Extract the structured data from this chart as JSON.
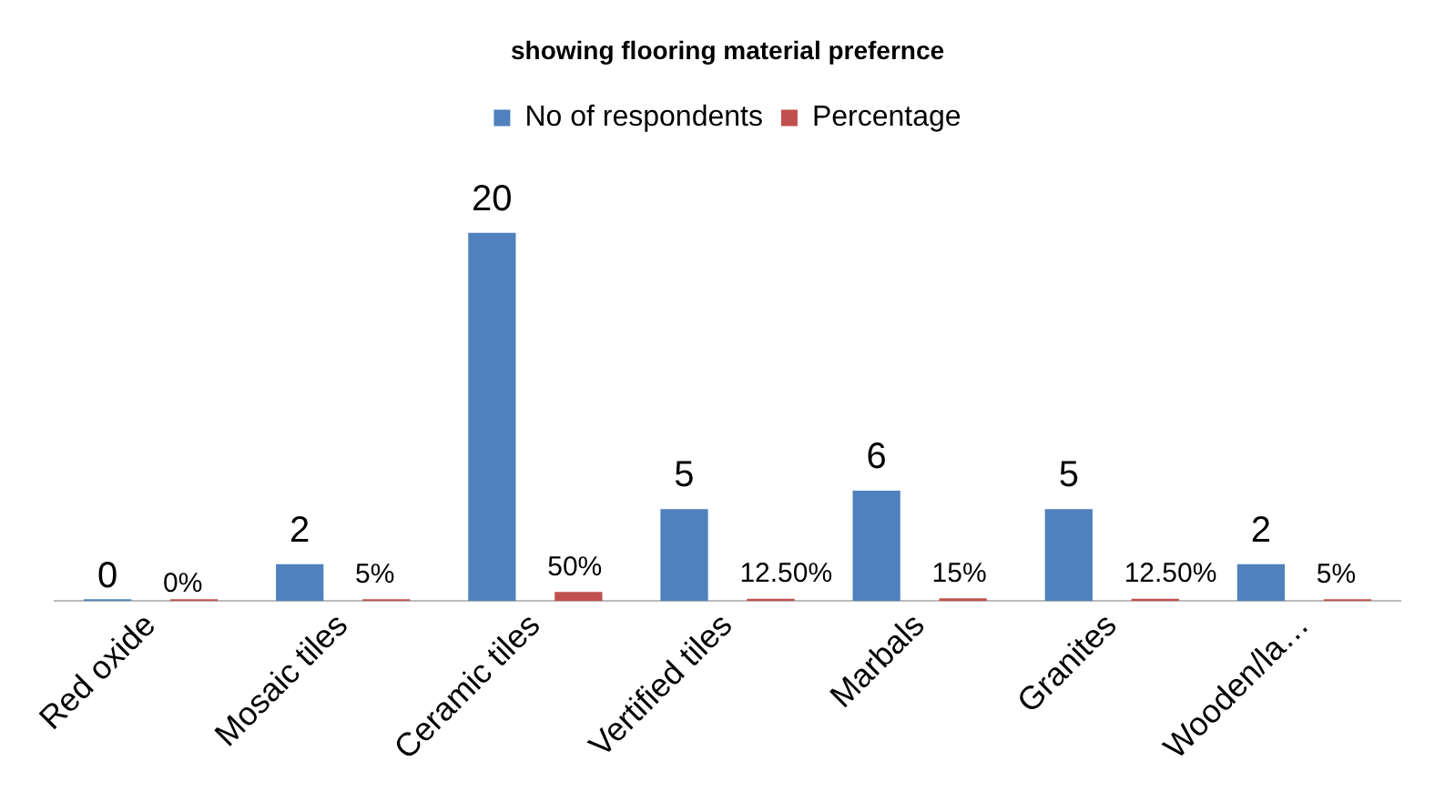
{
  "chart_data": {
    "type": "bar",
    "title": "showing flooring material prefernce",
    "categories": [
      "Red oxide",
      "Mosaic tiles",
      "Ceramic tiles",
      "Vertified tiles",
      "Marbals",
      "Granites",
      "Wooden/la…"
    ],
    "series": [
      {
        "name": "No of respondents",
        "color": "#4f81bd",
        "values": [
          0,
          2,
          20,
          5,
          6,
          5,
          2
        ],
        "value_labels": [
          "0",
          "2",
          "20",
          "5",
          "6",
          "5",
          "2"
        ]
      },
      {
        "name": "Percentage",
        "color": "#c0504d",
        "values": [
          0,
          0.05,
          0.5,
          0.125,
          0.15,
          0.125,
          0.05
        ],
        "value_labels": [
          "0%",
          "5%",
          "50%",
          "12.50%",
          "15%",
          "12.50%",
          "5%"
        ]
      }
    ],
    "legend": "top",
    "grid": false
  }
}
